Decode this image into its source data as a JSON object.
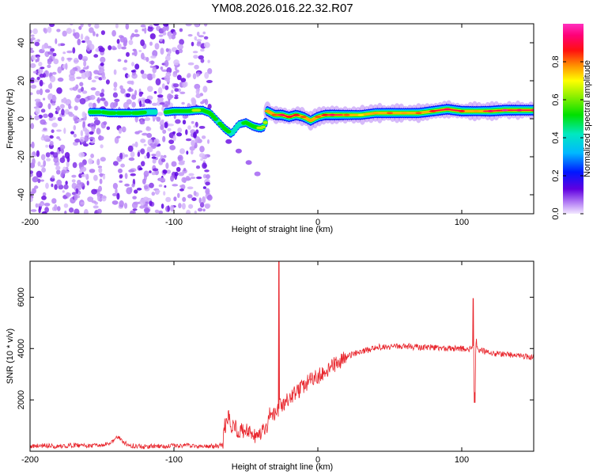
{
  "title": "YM08.2026.016.22.32.R07",
  "chart_data": [
    {
      "type": "heatmap",
      "name": "spectrogram",
      "xlabel": "Height of straight line (km)",
      "ylabel": "Frequency (Hz)",
      "xlim": [
        -200,
        150
      ],
      "ylim": [
        -50,
        50
      ],
      "xticks": [
        -200,
        -100,
        0,
        100
      ],
      "yticks": [
        -40,
        -20,
        0,
        20,
        40
      ],
      "colorbar": {
        "label": "Normalized spectral amplitude",
        "range": [
          0,
          1
        ],
        "ticks": [
          0.0,
          0.2,
          0.4,
          0.6,
          0.8
        ],
        "tick_labels": [
          "0.0",
          "0.2",
          "0.4",
          "0.6",
          "0.8"
        ]
      },
      "noise_region_x": [
        -200,
        -75
      ],
      "ridge": {
        "x": [
          -158,
          -150,
          -145,
          -140,
          -135,
          -130,
          -125,
          -118,
          -112,
          -105,
          -100,
          -95,
          -90,
          -85,
          -80,
          -75,
          -70,
          -65,
          -60,
          -55,
          -50,
          -45,
          -40,
          -37,
          -35,
          -30,
          -25,
          -20,
          -15,
          -10,
          -5,
          0,
          5,
          10,
          20,
          30,
          40,
          50,
          60,
          70,
          80,
          90,
          100,
          110,
          120,
          130,
          140,
          150
        ],
        "y": [
          3.5,
          3.5,
          3,
          3,
          3,
          3,
          3,
          3.5,
          3.5,
          3.5,
          4,
          4,
          4,
          4.5,
          4.5,
          3,
          -1,
          -5,
          -8,
          -3,
          -2,
          -4,
          -5,
          -4,
          4,
          2,
          2,
          1,
          2,
          1,
          -1,
          1,
          2,
          2,
          2,
          2,
          3,
          3,
          3,
          3,
          4,
          5,
          4,
          4,
          4,
          4.5,
          4.5,
          4.5
        ],
        "amplitude": [
          0.5,
          0.45,
          0.5,
          0.45,
          0.5,
          0.45,
          0.5,
          0.45,
          0.45,
          0.5,
          0.55,
          0.5,
          0.55,
          0.6,
          0.55,
          0.5,
          0.45,
          0.5,
          0.45,
          0.4,
          0.5,
          0.55,
          0.6,
          0.65,
          0.75,
          0.8,
          0.9,
          0.85,
          0.85,
          0.8,
          0.75,
          0.8,
          0.85,
          0.9,
          0.8,
          0.7,
          0.75,
          0.8,
          0.75,
          0.8,
          0.85,
          0.9,
          0.85,
          0.75,
          0.9,
          0.95,
          0.9,
          0.9
        ]
      },
      "branch": {
        "x": [
          -62,
          -55,
          -48,
          -42
        ],
        "y": [
          -12,
          -17,
          -23,
          -29
        ],
        "amplitude": [
          0.1,
          0.08,
          0.07,
          0.06
        ]
      }
    },
    {
      "type": "line",
      "name": "snr",
      "xlabel": "Height of straight line (km)",
      "ylabel": "SNR (10 * v/v)",
      "xlim": [
        -200,
        150
      ],
      "ylim": [
        0,
        7400
      ],
      "xticks": [
        -200,
        -100,
        0,
        100
      ],
      "yticks": [
        2000,
        4000,
        6000
      ],
      "color": "#e8232a",
      "series": [
        {
          "name": "SNR",
          "x": [
            -200,
            -190,
            -180,
            -170,
            -160,
            -150,
            -145,
            -140,
            -138,
            -135,
            -130,
            -120,
            -110,
            -100,
            -90,
            -80,
            -70,
            -66,
            -65,
            -62,
            -60,
            -58,
            -55,
            -50,
            -45,
            -40,
            -35,
            -33,
            -32,
            -31,
            -30,
            -29,
            -28,
            -27,
            -26,
            -25,
            -20,
            -15,
            -10,
            -5,
            0,
            5,
            10,
            15,
            20,
            25,
            30,
            35,
            40,
            50,
            60,
            70,
            80,
            90,
            100,
            105,
            108,
            109,
            110,
            111,
            112,
            115,
            120,
            130,
            140,
            150
          ],
          "y": [
            200,
            220,
            180,
            240,
            210,
            220,
            300,
            500,
            550,
            350,
            220,
            180,
            200,
            210,
            230,
            180,
            200,
            250,
            950,
            1300,
            900,
            1100,
            750,
            800,
            550,
            650,
            900,
            1600,
            1200,
            1500,
            1400,
            1700,
            1500,
            1650,
            1850,
            1700,
            2050,
            2300,
            2500,
            2800,
            2900,
            3100,
            3300,
            3500,
            3650,
            3800,
            3900,
            3950,
            4050,
            4050,
            4100,
            4050,
            4050,
            4000,
            4000,
            3950,
            4100,
            2300,
            4400,
            3950,
            3950,
            3900,
            3800,
            3800,
            3700,
            3650
          ],
          "spikes": [
            {
              "x": -27,
              "y": 7400
            },
            {
              "x": 108,
              "y": 5950
            },
            {
              "x": 109,
              "y": 1900
            }
          ]
        }
      ]
    }
  ]
}
